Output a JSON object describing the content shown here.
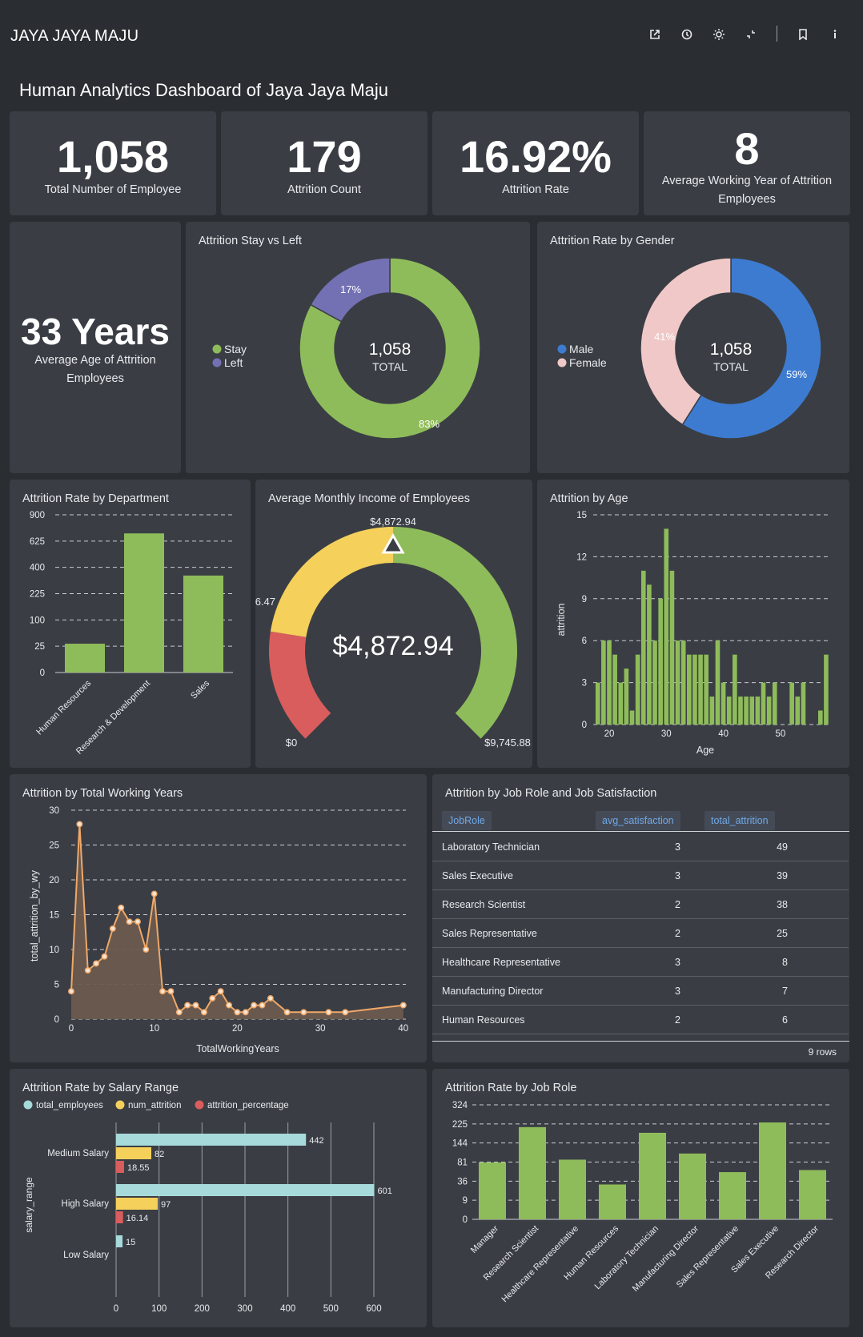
{
  "app": {
    "title": "JAYA JAYA MAJU"
  },
  "toolbar": {
    "icons": [
      "share-icon",
      "history-icon",
      "theme-icon",
      "collapse-icon",
      "bookmark-icon",
      "info-icon"
    ]
  },
  "dashboard": {
    "title": "Human Analytics Dashboard of Jaya Jaya Maju"
  },
  "kpis": {
    "total_employees": {
      "value": "1,058",
      "label": "Total Number of Employee"
    },
    "attrition_count": {
      "value": "179",
      "label": "Attrition Count"
    },
    "attrition_rate": {
      "value": "16.92%",
      "label": "Attrition Rate"
    },
    "avg_working_year": {
      "value": "8",
      "label": "Average Working Year of Attrition Employees"
    },
    "avg_age": {
      "value": "33 Years",
      "label": "Average Age of Attrition Employees"
    }
  },
  "colors": {
    "green": "#8fbc5a",
    "purple": "#7470b4",
    "blue": "#3d7bd1",
    "pink": "#f0c8c8",
    "yellow": "#f5d05b",
    "red": "#d95d5d",
    "cyan": "#a7dada",
    "orange": "#f0a868",
    "panel": "#3a3e44"
  },
  "chart_data": [
    {
      "id": "stay_vs_left",
      "type": "pie",
      "title": "Attrition Stay vs Left",
      "categories": [
        "Stay",
        "Left"
      ],
      "values": [
        83,
        17
      ],
      "labels": [
        "83%",
        "17%"
      ],
      "total": "1,058",
      "total_label": "TOTAL",
      "legend": "left"
    },
    {
      "id": "gender",
      "type": "pie",
      "title": "Attrition Rate by Gender",
      "categories": [
        "Male",
        "Female"
      ],
      "values": [
        59,
        41
      ],
      "labels": [
        "59%",
        "41%"
      ],
      "total": "1,058",
      "total_label": "TOTAL",
      "legend": "left"
    },
    {
      "id": "department",
      "type": "bar",
      "title": "Attrition Rate by Department",
      "categories": [
        "Human Resources",
        "Research & Development",
        "Sales"
      ],
      "values": [
        30,
        700,
        340
      ],
      "y_ticks": [
        "0",
        "25",
        "100",
        "225",
        "400",
        "625",
        "900"
      ],
      "y_scale": "sqrt",
      "ylim": [
        0,
        900
      ]
    },
    {
      "id": "income_gauge",
      "type": "gauge",
      "title": "Average Monthly Income of Employees",
      "value": 4872.94,
      "value_label": "$4,872.94",
      "min_label": "$0",
      "max_label": "$9,745.88",
      "min": 0,
      "max": 9745.88,
      "mid_label": "6.47",
      "top_label": "$4,872.94"
    },
    {
      "id": "age",
      "type": "bar",
      "title": "Attrition by Age",
      "xlabel": "Age",
      "ylabel": "attrition",
      "x": [
        18,
        19,
        20,
        21,
        22,
        23,
        24,
        25,
        26,
        27,
        28,
        29,
        30,
        31,
        32,
        33,
        34,
        35,
        36,
        37,
        38,
        39,
        40,
        41,
        42,
        43,
        44,
        45,
        46,
        47,
        48,
        49,
        50,
        51,
        52,
        53,
        54,
        55,
        56,
        57,
        58
      ],
      "values": [
        3,
        6,
        6,
        5,
        3,
        4,
        1,
        5,
        11,
        10,
        6,
        9,
        14,
        11,
        6,
        6,
        5,
        5,
        5,
        5,
        2,
        6,
        3,
        2,
        5,
        2,
        2,
        2,
        2,
        3,
        2,
        3,
        0,
        0,
        3,
        2,
        3,
        0,
        0,
        1,
        5
      ],
      "x_ticks": [
        "20",
        "30",
        "40",
        "50"
      ],
      "y_ticks": [
        "0",
        "3",
        "6",
        "9",
        "12",
        "15"
      ],
      "ylim": [
        0,
        15
      ]
    },
    {
      "id": "working_years",
      "type": "area",
      "title": "Attrition by Total Working Years",
      "xlabel": "TotalWorkingYears",
      "ylabel": "total_attrition_by_wy",
      "x": [
        0,
        1,
        2,
        3,
        4,
        5,
        6,
        7,
        8,
        9,
        10,
        11,
        12,
        13,
        14,
        15,
        16,
        17,
        18,
        19,
        20,
        21,
        22,
        23,
        24,
        26,
        28,
        31,
        33,
        40
      ],
      "values": [
        4,
        28,
        7,
        8,
        9,
        13,
        16,
        14,
        14,
        10,
        18,
        4,
        4,
        1,
        2,
        2,
        1,
        3,
        4,
        2,
        1,
        1,
        2,
        2,
        3,
        1,
        1,
        1,
        1,
        2
      ],
      "x_ticks": [
        "0",
        "10",
        "20",
        "30",
        "40"
      ],
      "y_ticks": [
        "0",
        "5",
        "10",
        "15",
        "20",
        "25",
        "30"
      ],
      "ylim": [
        0,
        30
      ]
    },
    {
      "id": "salary_range",
      "type": "bar",
      "title": "Attrition Rate by Salary Range",
      "ylabel": "salary_range",
      "categories": [
        "Medium Salary",
        "High Salary",
        "Low Salary"
      ],
      "series": [
        {
          "name": "total_employees",
          "values": [
            442,
            601,
            15
          ],
          "labels": [
            "442",
            "601",
            "15"
          ]
        },
        {
          "name": "num_attrition",
          "values": [
            82,
            97,
            0
          ],
          "labels": [
            "82",
            "97",
            ""
          ]
        },
        {
          "name": "attrition_percentage",
          "values": [
            18.55,
            16.14,
            0
          ],
          "labels": [
            "18.55",
            "16.14",
            ""
          ]
        }
      ],
      "x_ticks": [
        "0",
        "100",
        "200",
        "300",
        "400",
        "500",
        "600"
      ],
      "xlim": [
        0,
        640
      ],
      "legend": "top-left"
    },
    {
      "id": "job_role",
      "type": "bar",
      "title": "Attrition Rate by Job Role",
      "categories": [
        "Manager",
        "Research Scientist",
        "Healthcare Representative",
        "Human Resources",
        "Laboratory Technician",
        "Manufacturing Director",
        "Sales Representative",
        "Sales Executive",
        "Research Director"
      ],
      "values": [
        80,
        210,
        88,
        30,
        185,
        107,
        55,
        232,
        60
      ],
      "y_ticks": [
        "0",
        "9",
        "36",
        "81",
        "144",
        "225",
        "324"
      ],
      "y_scale": "sqrt",
      "ylim": [
        0,
        324
      ]
    },
    {
      "id": "job_role_satisfaction",
      "type": "table",
      "title": "Attrition by Job Role and Job Satisfaction",
      "columns": [
        "JobRole",
        "avg_satisfaction",
        "total_attrition"
      ],
      "rows": [
        [
          "Laboratory Technician",
          "3",
          "49"
        ],
        [
          "Sales Executive",
          "3",
          "39"
        ],
        [
          "Research Scientist",
          "2",
          "38"
        ],
        [
          "Sales Representative",
          "2",
          "25"
        ],
        [
          "Healthcare Representative",
          "3",
          "8"
        ],
        [
          "Manufacturing Director",
          "3",
          "7"
        ],
        [
          "Human Resources",
          "2",
          "6"
        ]
      ],
      "footer": "9 rows"
    }
  ]
}
